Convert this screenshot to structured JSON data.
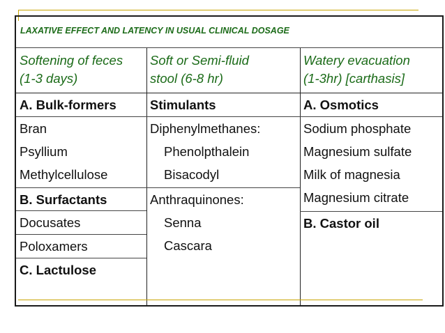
{
  "title": "LAXATIVE EFFECT AND LATENCY IN USUAL CLINICAL DOSAGE",
  "headers": [
    {
      "line1": "Softening of feces",
      "line2": "(1-3 days)"
    },
    {
      "line1": "Soft or Semi-fluid",
      "line2": "stool (6-8 hr)"
    },
    {
      "line1": "Watery evacuation",
      "line2": "(1-3hr) [carthasis]"
    }
  ],
  "col1": {
    "cat_a": "A. Bulk-formers",
    "bulk_items": [
      "Bran",
      "Psyllium",
      "Methylcellulose"
    ],
    "cat_b": "B. Surfactants",
    "surf_items": [
      "Docusates",
      "Poloxamers"
    ],
    "cat_c": "C. Lactulose"
  },
  "col2": {
    "cat": "Stimulants",
    "group1": "Diphenylmethanes:",
    "group1_items": [
      "Phenolpthalein",
      "Bisacodyl"
    ],
    "group2": "Anthraquinones:",
    "group2_items": [
      "Senna",
      "Cascara"
    ]
  },
  "col3": {
    "cat_a": "A. Osmotics",
    "osm_items": [
      "Sodium phosphate",
      "Magnesium sulfate",
      "Milk of magnesia",
      "Magnesium citrate"
    ],
    "cat_b": "B. Castor oil"
  }
}
